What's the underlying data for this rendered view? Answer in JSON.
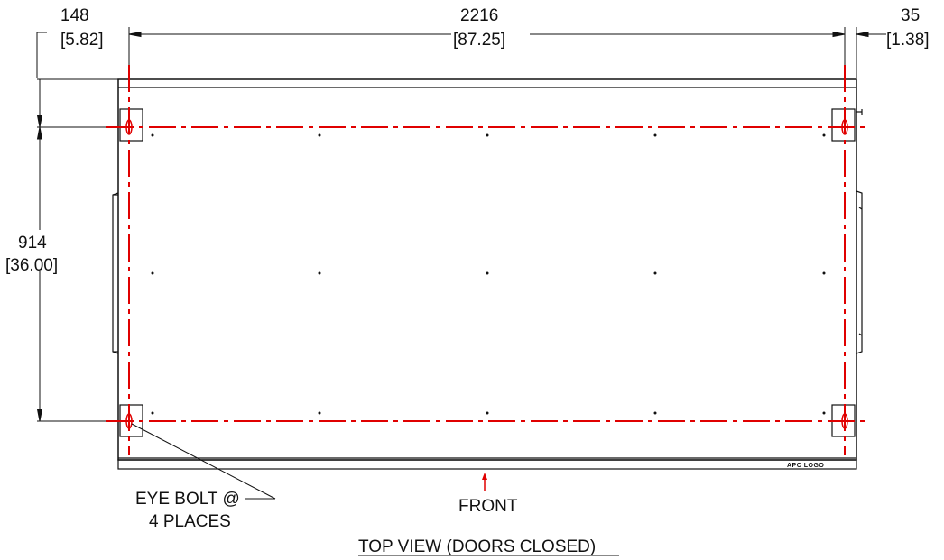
{
  "dimensions": {
    "left_offset": {
      "mm": "148",
      "inch": "[5.82]"
    },
    "width": {
      "mm": "2216",
      "inch": "[87.25]"
    },
    "right_offset": {
      "mm": "35",
      "inch": "[1.38]"
    },
    "depth": {
      "mm": "914",
      "inch": "[36.00]"
    }
  },
  "labels": {
    "eye_bolt_line1": "EYE BOLT @",
    "eye_bolt_line2": "4 PLACES",
    "front": "FRONT",
    "view_title": "TOP VIEW (DOORS CLOSED)",
    "logo": "APC LOGO"
  },
  "colors": {
    "centerline": "#e00000",
    "linework": "#111111"
  }
}
